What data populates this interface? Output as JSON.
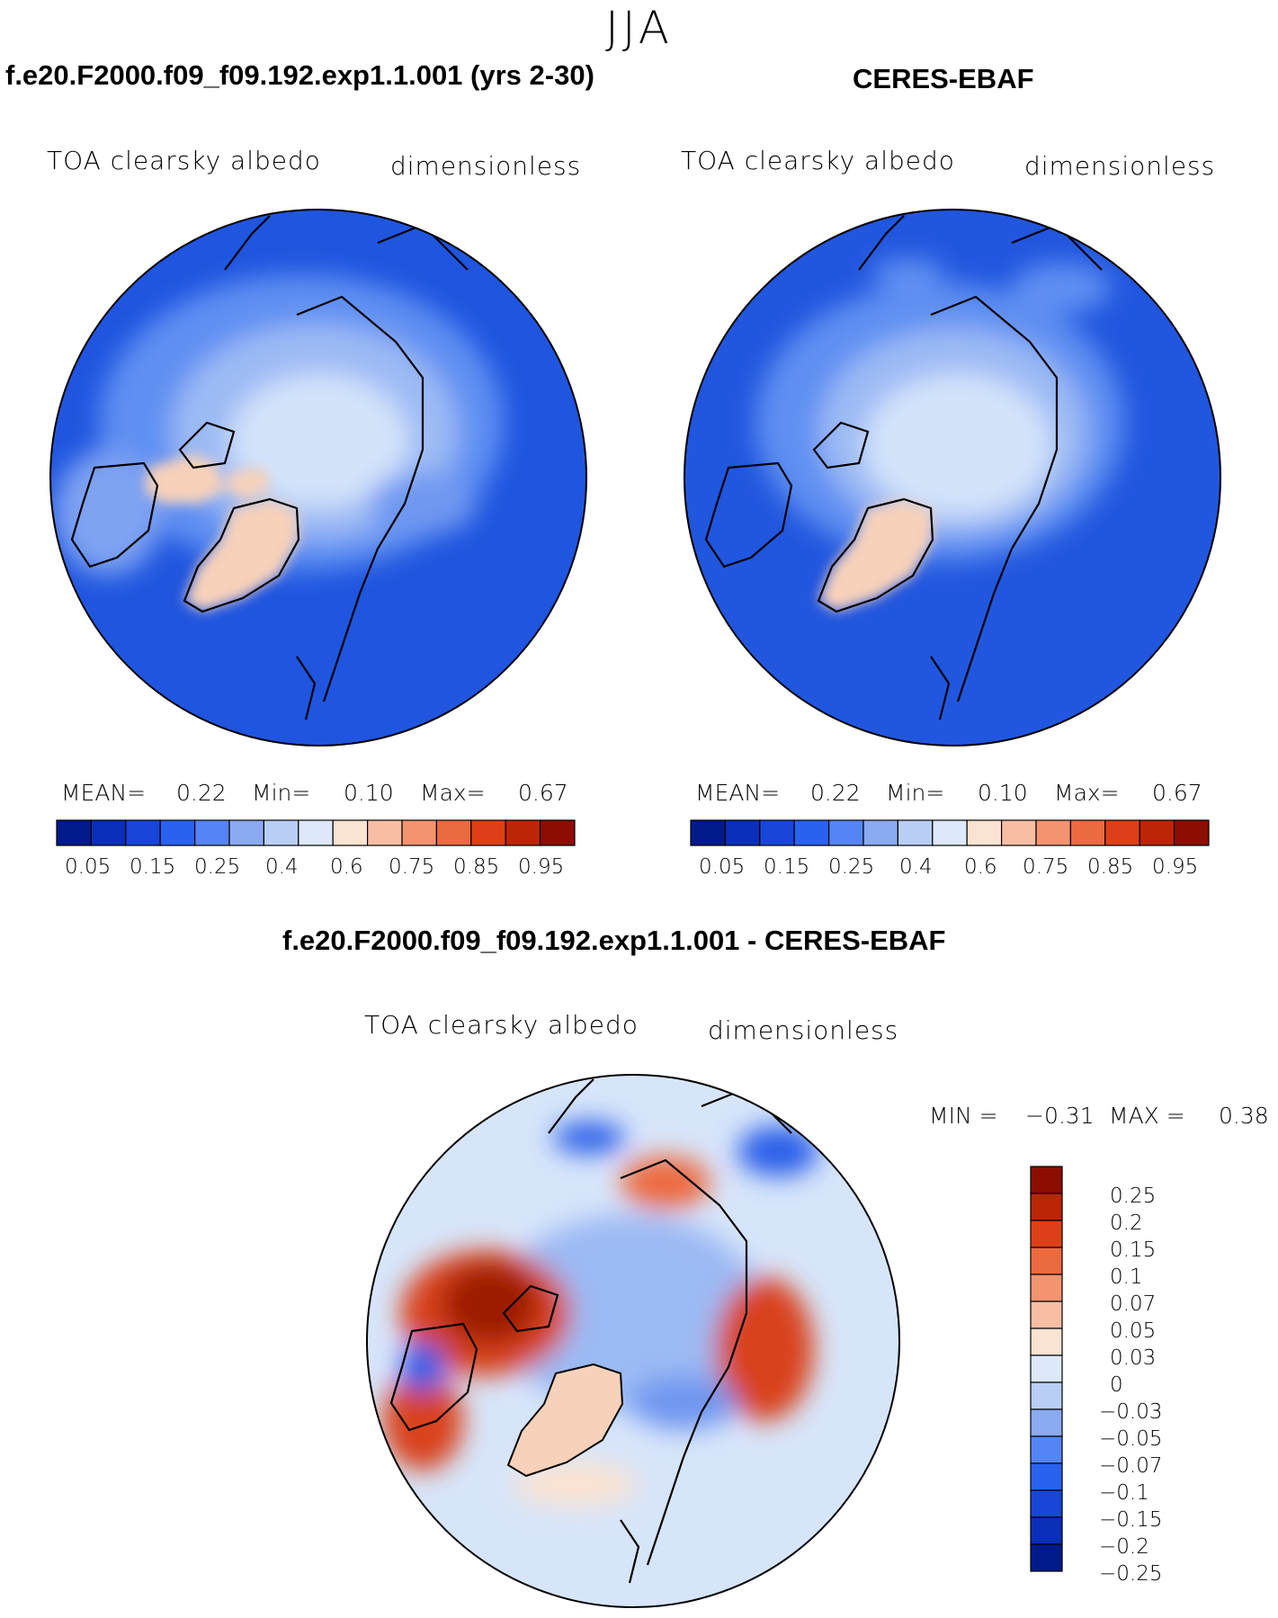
{
  "season": "JJA",
  "panels": [
    {
      "title": "f.e20.F2000.f09_f09.192.exp1.1.001 (yrs 2-30)",
      "variable": "TOA clearsky albedo",
      "units": "dimensionless",
      "stats": {
        "mean_label": "MEAN=",
        "mean": "0.22",
        "min_label": "Min=",
        "min": "0.10",
        "max_label": "Max=",
        "max": "0.67"
      }
    },
    {
      "title": "CERES-EBAF",
      "variable": "TOA clearsky albedo",
      "units": "dimensionless",
      "stats": {
        "mean_label": "MEAN=",
        "mean": "0.22",
        "min_label": "Min=",
        "min": "0.10",
        "max_label": "Max=",
        "max": "0.67"
      }
    }
  ],
  "abs_colorbar": {
    "colors": [
      "#001a8a",
      "#0a2fb8",
      "#1746d8",
      "#2a62f0",
      "#5585f5",
      "#8aaaf2",
      "#b8cef5",
      "#dde9fb",
      "#fbe3d2",
      "#f8bea4",
      "#f4946f",
      "#ec6a40",
      "#dd4018",
      "#bc2506",
      "#8c0e00"
    ],
    "tick_labels": [
      "0.05",
      "0.15",
      "0.25",
      "0.4",
      "0.6",
      "0.75",
      "0.85",
      "0.95"
    ]
  },
  "difference": {
    "title": "f.e20.F2000.f09_f09.192.exp1.1.001 - CERES-EBAF",
    "variable": "TOA clearsky albedo",
    "units": "dimensionless",
    "stats": {
      "min_label": "MIN =",
      "min": "−0.31",
      "max_label": "MAX =",
      "max": "0.38"
    }
  },
  "diff_colorbar": {
    "colors_top_to_bottom": [
      "#8c0e00",
      "#bc2506",
      "#dd4018",
      "#ec6a40",
      "#f4946f",
      "#f8bea4",
      "#fbe3d2",
      "#dde9fb",
      "#b8cef5",
      "#8aaaf2",
      "#5585f5",
      "#2a62f0",
      "#1746d8",
      "#0a2fb8",
      "#001a8a"
    ],
    "tick_labels": [
      "0.25",
      "0.2",
      "0.15",
      "0.1",
      "0.07",
      "0.05",
      "0.03",
      "0",
      "−0.03",
      "−0.05",
      "−0.07",
      "−0.1",
      "−0.15",
      "−0.2",
      "−0.25"
    ]
  },
  "map_colors": {
    "ocean_model": "#1f55df",
    "ocean_obs": "#2156de",
    "arctic_low": "#5f8ff2",
    "arctic_mid": "#9cbaf4",
    "arctic_high": "#d3e3fa",
    "greenland": "#f7d1ba",
    "diff_base": "#d7e5fa",
    "diff_red": "#d9431a",
    "diff_darkred": "#9e1a05",
    "diff_blue": "#6f96ef",
    "diff_deepblue": "#2b5fe8",
    "coastline": "#000000"
  }
}
